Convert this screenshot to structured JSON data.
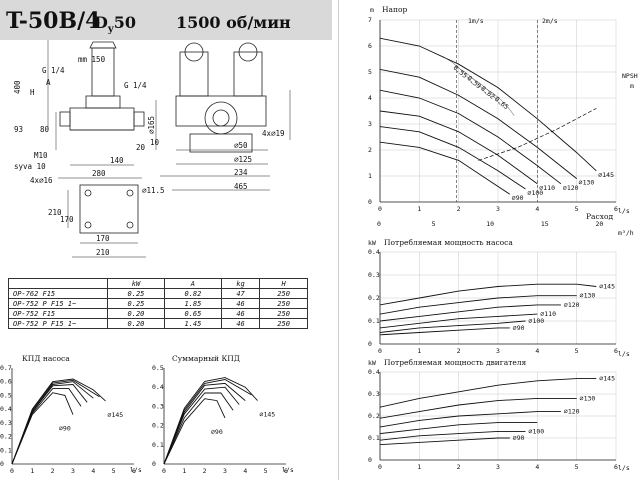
{
  "header": {
    "model": "T-50B/4",
    "dn_prefix": "D",
    "dn_sub": "y",
    "dn_value": "50",
    "speed": "1500 об/мин"
  },
  "drawing": {
    "dim_mm150": "mm 150",
    "dim_g14_left": "G 1/4",
    "dim_g14_right": "G 1/4",
    "dim_400": "400",
    "dim_H": "H",
    "dim_A": "A",
    "dim_93": "93",
    "dim_80": "80",
    "dim_d165": "⌀165",
    "dim_20": "20",
    "dim_m10": "M10",
    "dim_syva": "syva 10",
    "dim_140": "140",
    "dim_4x16": "4x⌀16",
    "dim_280": "280",
    "dim_d115": "⌀11.5",
    "dim_210_left": "210",
    "dim_170_left": "170",
    "dim_170_bottom": "170",
    "dim_210_bottom": "210",
    "dim_4x19": "4x⌀19",
    "dim_10": "10",
    "dim_d50": "⌀50",
    "dim_d125": "⌀125",
    "dim_234": "234",
    "dim_465": "465"
  },
  "spec_table": {
    "headers": [
      "",
      "kW",
      "A",
      "kg",
      "H"
    ],
    "rows": [
      [
        "OP-762 F15",
        "0.25",
        "0.82",
        "47",
        "250"
      ],
      [
        "OP-752 P F15 1~",
        "0.25",
        "1.85",
        "46",
        "250"
      ],
      [
        "OP-752 F15",
        "0.20",
        "0.65",
        "46",
        "250"
      ],
      [
        "OP-752 P F15 1~",
        "0.20",
        "1.45",
        "46",
        "250"
      ]
    ]
  },
  "charts": {
    "kpd_pump_title": "КПД насоса",
    "kpd_total_title": "Суммарный КПД",
    "head_title": "Напор",
    "flow_label": "Расход",
    "pump_power_title": "Потребляемая мощность насоса",
    "motor_power_title": "Потребляемая мощность двигателя",
    "npsh_label": "NPSH",
    "npsh_unit": "m",
    "speed_1": "1m/s",
    "speed_2": "2m/s",
    "axis_ls": "l/s",
    "axis_m3h": "m³/h",
    "axis_kw": "kW",
    "axis_m": "m"
  },
  "chart_data": [
    {
      "type": "line",
      "title": "КПД насоса",
      "xlabel": "l/s",
      "xlim": [
        0,
        6
      ],
      "ylim": [
        0,
        0.7
      ],
      "series": [
        {
          "name": "⌀90",
          "x": [
            0,
            1,
            2,
            2.6,
            3.0
          ],
          "y": [
            0,
            0.36,
            0.52,
            0.5,
            0.36
          ]
        },
        {
          "name": "⌀100",
          "x": [
            0,
            1,
            2,
            2.8,
            3.4
          ],
          "y": [
            0,
            0.37,
            0.55,
            0.55,
            0.42
          ]
        },
        {
          "name": "⌀110",
          "x": [
            0,
            1,
            2,
            3,
            3.7
          ],
          "y": [
            0,
            0.38,
            0.57,
            0.58,
            0.45
          ]
        },
        {
          "name": "⌀120",
          "x": [
            0,
            1,
            2,
            3,
            4.0
          ],
          "y": [
            0,
            0.38,
            0.58,
            0.6,
            0.48
          ]
        },
        {
          "name": "⌀130",
          "x": [
            0,
            1,
            2,
            3,
            4.3
          ],
          "y": [
            0,
            0.39,
            0.59,
            0.61,
            0.49
          ]
        },
        {
          "name": "⌀145",
          "x": [
            0,
            1,
            2,
            3,
            4,
            4.6
          ],
          "y": [
            0,
            0.4,
            0.6,
            0.62,
            0.54,
            0.46
          ]
        }
      ],
      "labels": [
        "⌀90",
        "⌀145"
      ]
    },
    {
      "type": "line",
      "title": "Суммарный КПД",
      "xlabel": "l/s",
      "xlim": [
        0,
        6
      ],
      "ylim": [
        0,
        0.5
      ],
      "series": [
        {
          "name": "⌀90",
          "x": [
            0,
            1,
            2,
            2.6,
            3.0
          ],
          "y": [
            0,
            0.22,
            0.34,
            0.33,
            0.24
          ]
        },
        {
          "name": "⌀100",
          "x": [
            0,
            1,
            2,
            2.8,
            3.4
          ],
          "y": [
            0,
            0.24,
            0.37,
            0.37,
            0.28
          ]
        },
        {
          "name": "⌀110",
          "x": [
            0,
            1,
            2,
            3,
            3.7
          ],
          "y": [
            0,
            0.26,
            0.39,
            0.4,
            0.31
          ]
        },
        {
          "name": "⌀120",
          "x": [
            0,
            1,
            2,
            3,
            4.0
          ],
          "y": [
            0,
            0.27,
            0.41,
            0.42,
            0.33
          ]
        },
        {
          "name": "⌀130",
          "x": [
            0,
            1,
            2,
            3,
            4.3
          ],
          "y": [
            0,
            0.28,
            0.42,
            0.44,
            0.36
          ]
        },
        {
          "name": "⌀145",
          "x": [
            0,
            1,
            2,
            3,
            4,
            4.6
          ],
          "y": [
            0,
            0.29,
            0.43,
            0.45,
            0.4,
            0.33
          ]
        }
      ],
      "labels": [
        "⌀90",
        "⌀145"
      ]
    },
    {
      "type": "line",
      "title": "Напор",
      "xlabel": "Расход",
      "ylabel": "m",
      "xlim": [
        0,
        6
      ],
      "ylim": [
        0,
        7
      ],
      "x2_label": "m³/h",
      "x2_ticks": [
        0,
        5,
        10,
        15,
        20
      ],
      "series": [
        {
          "name": "⌀145",
          "x": [
            0,
            1,
            2,
            3,
            4,
            5,
            5.5
          ],
          "y": [
            6.3,
            6.0,
            5.3,
            4.4,
            3.2,
            1.9,
            1.2
          ]
        },
        {
          "name": "⌀130",
          "x": [
            0,
            1,
            2,
            3,
            4,
            5.0
          ],
          "y": [
            5.1,
            4.8,
            4.1,
            3.2,
            2.1,
            0.9
          ]
        },
        {
          "name": "⌀120",
          "x": [
            0,
            1,
            2,
            3,
            4,
            4.6
          ],
          "y": [
            4.3,
            4.0,
            3.4,
            2.5,
            1.4,
            0.7
          ]
        },
        {
          "name": "⌀110",
          "x": [
            0,
            1,
            2,
            3,
            4.0
          ],
          "y": [
            3.5,
            3.3,
            2.7,
            1.8,
            0.7
          ]
        },
        {
          "name": "⌀100",
          "x": [
            0,
            1,
            2,
            3,
            3.7
          ],
          "y": [
            2.9,
            2.7,
            2.1,
            1.2,
            0.5
          ]
        },
        {
          "name": "⌀90",
          "x": [
            0,
            1,
            2,
            2.8,
            3.3
          ],
          "y": [
            2.3,
            2.1,
            1.6,
            0.8,
            0.3
          ]
        }
      ],
      "efficiency_lines": [
        "0.55",
        "0.59",
        "0.62",
        "0.65"
      ],
      "npsh": {
        "x": [
          2.5,
          3.5,
          4.5,
          5.5
        ],
        "y": [
          1.6,
          2.1,
          2.8,
          3.6
        ]
      },
      "labels": [
        "⌀145",
        "⌀130",
        "⌀120",
        "⌀110",
        "⌀100",
        "⌀90"
      ]
    },
    {
      "type": "line",
      "title": "Потребляемая мощность насоса",
      "ylabel": "kW",
      "xlabel": "l/s",
      "xlim": [
        0,
        6
      ],
      "ylim": [
        0,
        0.4
      ],
      "series": [
        {
          "name": "⌀145",
          "x": [
            0,
            1,
            2,
            3,
            4,
            5,
            5.5
          ],
          "y": [
            0.17,
            0.2,
            0.23,
            0.25,
            0.26,
            0.26,
            0.25
          ]
        },
        {
          "name": "⌀130",
          "x": [
            0,
            1,
            2,
            3,
            4,
            5.0
          ],
          "y": [
            0.13,
            0.16,
            0.18,
            0.2,
            0.21,
            0.21
          ]
        },
        {
          "name": "⌀120",
          "x": [
            0,
            1,
            2,
            3,
            4,
            4.6
          ],
          "y": [
            0.1,
            0.12,
            0.14,
            0.16,
            0.17,
            0.17
          ]
        },
        {
          "name": "⌀110",
          "x": [
            0,
            1,
            2,
            3,
            4.0
          ],
          "y": [
            0.07,
            0.09,
            0.11,
            0.12,
            0.13
          ]
        },
        {
          "name": "⌀100",
          "x": [
            0,
            1,
            2,
            3,
            3.7
          ],
          "y": [
            0.05,
            0.07,
            0.08,
            0.09,
            0.1
          ]
        },
        {
          "name": "⌀90",
          "x": [
            0,
            1,
            2,
            3,
            3.3
          ],
          "y": [
            0.04,
            0.05,
            0.06,
            0.07,
            0.07
          ]
        }
      ],
      "labels": [
        "⌀145",
        "⌀130",
        "⌀120",
        "⌀110",
        "⌀100",
        "⌀90"
      ]
    },
    {
      "type": "line",
      "title": "Потребляемая мощность двигателя",
      "ylabel": "kW",
      "xlabel": "l/s",
      "xlim": [
        0,
        6
      ],
      "ylim": [
        0,
        0.4
      ],
      "series": [
        {
          "name": "⌀145",
          "x": [
            0,
            1,
            2,
            3,
            4,
            5,
            5.5
          ],
          "y": [
            0.24,
            0.28,
            0.31,
            0.34,
            0.36,
            0.37,
            0.37
          ]
        },
        {
          "name": "⌀130",
          "x": [
            0,
            1,
            2,
            3,
            4,
            5.0
          ],
          "y": [
            0.19,
            0.22,
            0.25,
            0.27,
            0.28,
            0.28
          ]
        },
        {
          "name": "⌀120",
          "x": [
            0,
            1,
            2,
            3,
            4,
            4.6
          ],
          "y": [
            0.15,
            0.18,
            0.2,
            0.21,
            0.22,
            0.22
          ]
        },
        {
          "name": "⌀110",
          "x": [
            0,
            1,
            2,
            3,
            4.0
          ],
          "y": [
            0.12,
            0.14,
            0.16,
            0.17,
            0.17
          ]
        },
        {
          "name": "⌀100",
          "x": [
            0,
            1,
            2,
            3,
            3.7
          ],
          "y": [
            0.09,
            0.11,
            0.12,
            0.13,
            0.13
          ]
        },
        {
          "name": "⌀90",
          "x": [
            0,
            1,
            2,
            3,
            3.3
          ],
          "y": [
            0.07,
            0.08,
            0.09,
            0.1,
            0.1
          ]
        }
      ],
      "labels": [
        "⌀145",
        "⌀130",
        "⌀120",
        "⌀100",
        "⌀90"
      ]
    }
  ]
}
